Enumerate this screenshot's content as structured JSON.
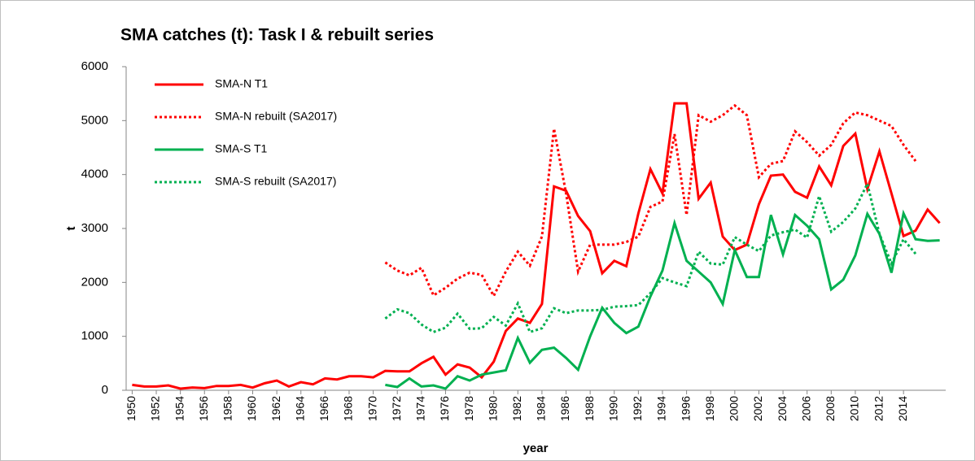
{
  "chart_data": {
    "type": "line",
    "title": "SMA catches (t): Task I & rebuilt series",
    "x_label": "year",
    "y_label": "t",
    "x": [
      1950,
      1951,
      1952,
      1953,
      1954,
      1955,
      1956,
      1957,
      1958,
      1959,
      1960,
      1961,
      1962,
      1963,
      1964,
      1965,
      1966,
      1967,
      1968,
      1969,
      1970,
      1971,
      1972,
      1973,
      1974,
      1975,
      1976,
      1977,
      1978,
      1979,
      1980,
      1981,
      1982,
      1983,
      1984,
      1985,
      1986,
      1987,
      1988,
      1989,
      1990,
      1991,
      1992,
      1993,
      1994,
      1995,
      1996,
      1997,
      1998,
      1999,
      2000,
      2001,
      2002,
      2003,
      2004,
      2005,
      2006,
      2007,
      2008,
      2009,
      2010,
      2011,
      2012,
      2013,
      2014,
      2015,
      2016,
      2017
    ],
    "xlim": [
      1949.5,
      2017.5
    ],
    "xticks": [
      1950,
      1952,
      1954,
      1956,
      1958,
      1960,
      1962,
      1964,
      1966,
      1968,
      1970,
      1972,
      1974,
      1976,
      1978,
      1980,
      1982,
      1984,
      1986,
      1988,
      1990,
      1992,
      1994,
      1996,
      1998,
      2000,
      2002,
      2004,
      2006,
      2008,
      2010,
      2012,
      2014
    ],
    "ylim": [
      0,
      6000
    ],
    "yticks": [
      0,
      1000,
      2000,
      3000,
      4000,
      5000,
      6000
    ],
    "legend": "top-left",
    "series": [
      {
        "name": "SMA-N T1",
        "color": "#ff0000",
        "dashed": false,
        "values": [
          100,
          70,
          70,
          90,
          30,
          50,
          40,
          80,
          80,
          100,
          50,
          130,
          180,
          70,
          150,
          110,
          220,
          200,
          260,
          260,
          240,
          360,
          350,
          350,
          500,
          620,
          290,
          480,
          420,
          240,
          530,
          1100,
          1330,
          1250,
          1600,
          3780,
          3700,
          3230,
          2950,
          2170,
          2400,
          2300,
          3280,
          4100,
          3650,
          5320,
          5320,
          3550,
          3850,
          2850,
          2600,
          2700,
          3450,
          3980,
          4000,
          3680,
          3570,
          4150,
          3800,
          4530,
          4760,
          3730,
          4430,
          3650,
          2860,
          2960,
          3350,
          3100
        ]
      },
      {
        "name": "SMA-N rebuilt (SA2017)",
        "color": "#ff0000",
        "dashed": true,
        "values": [
          null,
          null,
          null,
          null,
          null,
          null,
          null,
          null,
          null,
          null,
          null,
          null,
          null,
          null,
          null,
          null,
          null,
          null,
          null,
          null,
          null,
          2370,
          2220,
          2130,
          2270,
          1760,
          1900,
          2070,
          2180,
          2140,
          1750,
          2200,
          2570,
          2310,
          2850,
          4850,
          3650,
          2200,
          2700,
          2700,
          2700,
          2750,
          2850,
          3400,
          3500,
          4750,
          3250,
          5100,
          4980,
          5100,
          5280,
          5100,
          3950,
          4200,
          4250,
          4800,
          4600,
          4350,
          4550,
          4950,
          5150,
          5100,
          5000,
          4900,
          4550,
          4250,
          null,
          null
        ]
      },
      {
        "name": "SMA-S T1",
        "color": "#00b050",
        "dashed": false,
        "values": [
          null,
          null,
          null,
          null,
          null,
          null,
          null,
          null,
          null,
          null,
          null,
          null,
          null,
          null,
          null,
          null,
          null,
          null,
          null,
          null,
          null,
          100,
          60,
          220,
          70,
          90,
          30,
          260,
          180,
          290,
          330,
          370,
          970,
          510,
          750,
          790,
          600,
          380,
          1000,
          1530,
          1250,
          1060,
          1180,
          1740,
          2220,
          3100,
          2400,
          2200,
          2000,
          1600,
          2600,
          2100,
          2100,
          3250,
          2520,
          3250,
          3050,
          2800,
          1870,
          2050,
          2500,
          3270,
          2900,
          2180,
          3280,
          2800,
          2770,
          2780
        ]
      },
      {
        "name": "SMA-S rebuilt (SA2017)",
        "color": "#00b050",
        "dashed": true,
        "values": [
          null,
          null,
          null,
          null,
          null,
          null,
          null,
          null,
          null,
          null,
          null,
          null,
          null,
          null,
          null,
          null,
          null,
          null,
          null,
          null,
          null,
          1330,
          1500,
          1430,
          1220,
          1080,
          1160,
          1420,
          1140,
          1150,
          1360,
          1200,
          1610,
          1080,
          1150,
          1520,
          1430,
          1480,
          1480,
          1490,
          1550,
          1560,
          1580,
          1800,
          2080,
          2000,
          1930,
          2570,
          2350,
          2330,
          2840,
          2700,
          2580,
          2870,
          2930,
          2980,
          2830,
          3600,
          2940,
          3120,
          3370,
          3830,
          2900,
          2350,
          2800,
          2530,
          null,
          null
        ]
      }
    ]
  }
}
